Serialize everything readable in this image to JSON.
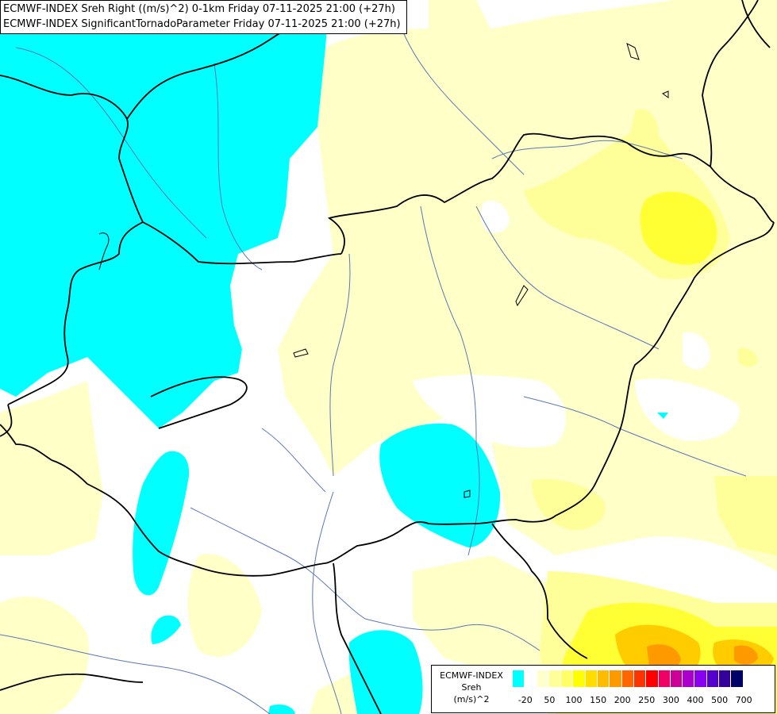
{
  "title": {
    "line1": "ECMWF-INDEX Sreh Right ((m/s)^2) 0-1km Friday 07-11-2025 21:00 (+27h)",
    "line2": "ECMWF-INDEX SignificantTornadoParameter Friday 07-11-2025 21:00 (+27h)"
  },
  "legend": {
    "name": "ECMWF-INDEX",
    "variable": "Sreh",
    "unit": "(m/s)^2",
    "ticks": [
      "-20",
      "50",
      "100",
      "150",
      "200",
      "250",
      "300",
      "400",
      "500",
      "700"
    ],
    "colors": [
      "#00ffff",
      "#ffffff",
      "#ffffcc",
      "#ffff99",
      "#ffff66",
      "#ffff00",
      "#ffdd00",
      "#ffbb00",
      "#ff9900",
      "#ff6600",
      "#ff3300",
      "#ff0000",
      "#ee0066",
      "#cc0099",
      "#aa00cc",
      "#8800ee",
      "#5500cc",
      "#330099",
      "#000066"
    ]
  },
  "colors": {
    "cyan": "#00ffff",
    "pale_yellow": "#ffffc8",
    "light_yellow": "#ffff99",
    "yellow": "#ffff33",
    "orange": "#ffcc00",
    "dark_orange": "#ff9900",
    "border": "#000000",
    "river": "#5a78b4"
  }
}
